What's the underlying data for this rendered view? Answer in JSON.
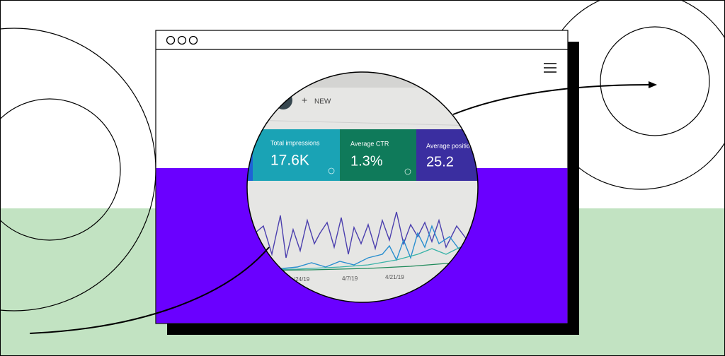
{
  "dashboard": {
    "new_button": "NEW",
    "cards": [
      {
        "label": "Total impressions",
        "value": "17.6K"
      },
      {
        "label": "Average CTR",
        "value": "1.3%"
      },
      {
        "label": "Average position",
        "value": "25.2"
      }
    ],
    "dates": [
      "/24/19",
      "4/7/19",
      "4/21/19"
    ]
  }
}
